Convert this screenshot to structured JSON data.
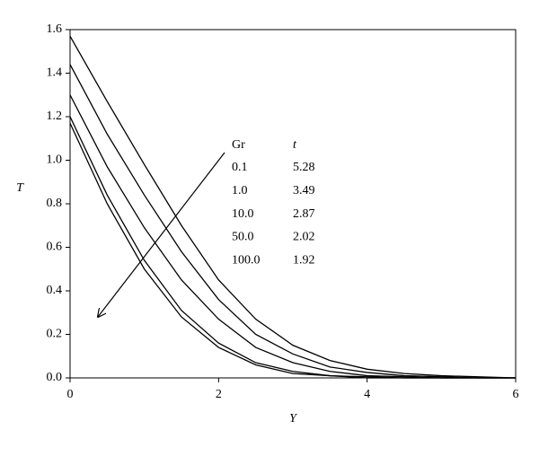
{
  "chart_data": {
    "type": "line",
    "x_label": "Y",
    "y_label": "T",
    "x": [
      0,
      0.5,
      1,
      1.5,
      2,
      2.5,
      3,
      3.5,
      4,
      4.5,
      5,
      5.5,
      6
    ],
    "series": [
      {
        "color": "#000000",
        "values": [
          1.57,
          1.27,
          0.98,
          0.7,
          0.45,
          0.27,
          0.15,
          0.08,
          0.04,
          0.02,
          0.01,
          0.005,
          0
        ]
      },
      {
        "color": "#000000",
        "values": [
          1.44,
          1.12,
          0.84,
          0.58,
          0.36,
          0.2,
          0.11,
          0.05,
          0.025,
          0.01,
          0.005,
          0,
          0
        ]
      },
      {
        "color": "#000000",
        "values": [
          1.3,
          0.97,
          0.69,
          0.45,
          0.27,
          0.14,
          0.07,
          0.03,
          0.01,
          0.005,
          0,
          0,
          0
        ]
      },
      {
        "color": "#000000",
        "values": [
          1.2,
          0.84,
          0.54,
          0.31,
          0.16,
          0.07,
          0.03,
          0.01,
          0.005,
          0,
          0,
          0,
          0
        ]
      },
      {
        "color": "#000000",
        "values": [
          1.17,
          0.8,
          0.5,
          0.28,
          0.14,
          0.06,
          0.02,
          0.01,
          0,
          0,
          0,
          0,
          0
        ]
      }
    ],
    "xlim": [
      0,
      6
    ],
    "xticks": [
      0,
      2,
      4,
      6
    ],
    "ylim": [
      0,
      1.6
    ],
    "yticks": [
      {
        "value": 0,
        "label": "0.0"
      },
      0.2,
      0.4,
      0.6,
      0.8,
      {
        "value": 1,
        "label": "1.0"
      },
      1.2,
      1.4,
      1.6
    ],
    "annotation": {
      "headers": [
        "Gr",
        "t"
      ],
      "rows": [
        [
          "0.1",
          "5.28"
        ],
        [
          "1.0",
          "3.49"
        ],
        [
          "10.0",
          "2.87"
        ],
        [
          "50.0",
          "2.02"
        ],
        [
          "100.0",
          "1.92"
        ]
      ]
    }
  }
}
